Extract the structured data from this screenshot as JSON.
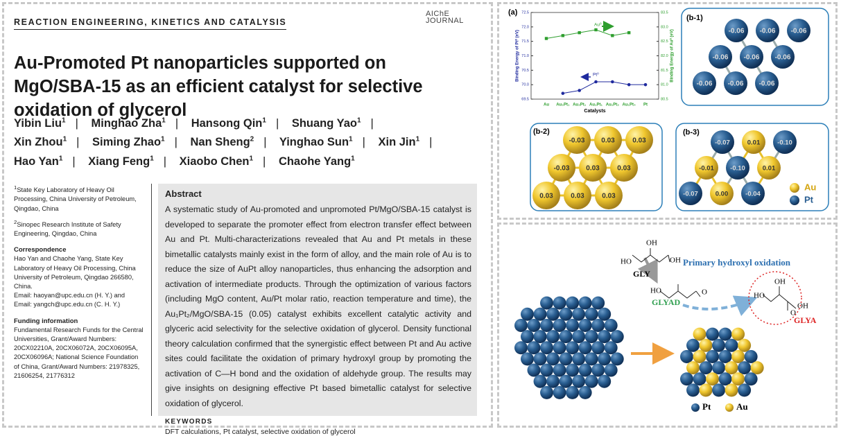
{
  "header": {
    "section": "REACTION ENGINEERING, KINETICS AND CATALYSIS",
    "logo_top": "AIChE",
    "logo_bottom": "JOURNAL"
  },
  "title": "Au-Promoted Pt nanoparticles supported on MgO/SBA-15 as an efficient catalyst for selective oxidation of glycerol",
  "authors": [
    {
      "name": "Yibin Liu",
      "aff": "1"
    },
    {
      "name": "Minghao Zha",
      "aff": "1"
    },
    {
      "name": "Hansong Qin",
      "aff": "1"
    },
    {
      "name": "Shuang Yao",
      "aff": "1"
    },
    {
      "name": "Xin Zhou",
      "aff": "1"
    },
    {
      "name": "Siming Zhao",
      "aff": "1"
    },
    {
      "name": "Nan Sheng",
      "aff": "2"
    },
    {
      "name": "Yinghao Sun",
      "aff": "1"
    },
    {
      "name": "Xin Jin",
      "aff": "1"
    },
    {
      "name": "Hao Yan",
      "aff": "1"
    },
    {
      "name": "Xiang Feng",
      "aff": "1"
    },
    {
      "name": "Xiaobo Chen",
      "aff": "1"
    },
    {
      "name": "Chaohe Yang",
      "aff": "1"
    }
  ],
  "affiliations": [
    {
      "mark": "1",
      "text": "State Key Laboratory of Heavy Oil Processing, China University of Petroleum, Qingdao, China"
    },
    {
      "mark": "2",
      "text": "Sinopec Research Institute of Safety Engineering, Qingdao, China"
    }
  ],
  "correspondence": {
    "heading": "Correspondence",
    "text": "Hao Yan and Chaohe Yang, State Key Laboratory of Heavy Oil Processing, China University of Petroleum, Qingdao 266580, China.",
    "email1": "Email: haoyan@upc.edu.cn (H. Y.) and",
    "email2": "Email: yangch@upc.edu.cn (C. H. Y.)"
  },
  "funding": {
    "heading": "Funding information",
    "text": "Fundamental Research Funds for the Central Universities, Grant/Award Numbers: 20CX02210A, 20CX06072A, 20CX06095A, 20CX06096A; National Science Foundation of China, Grant/Award Numbers: 21978325, 21606254, 21776312"
  },
  "abstract": {
    "heading": "Abstract",
    "text": "A systematic study of Au-promoted and unpromoted Pt/MgO/SBA-15 catalyst is developed to separate the promoter effect from electron transfer effect between Au and Pt. Multi-characterizations revealed that Au and Pt metals in these bimetallic catalysts mainly exist in the form of alloy, and the main role of Au is to reduce the size of AuPt alloy nanoparticles, thus enhancing the adsorption and activation of intermediate products. Through the optimization of various factors (including MgO content, Au/Pt molar ratio, reaction temperature and time), the Au₁Pt₂/MgO/SBA-15 (0.05) catalyst exhibits excellent catalytic activity and glyceric acid selectivity for the selective oxidation of glycerol. Density functional theory calculation confirmed that the synergistic effect between Pt and Au active sites could facilitate the oxidation of primary hydroxyl group by promoting the activation of C—H bond and the oxidation of aldehyde group. The results may give insights on designing effective Pt based bimetallic catalyst for selective oxidation of glycerol."
  },
  "keywords": {
    "heading": "KEYWORDS",
    "text": "DFT calculations, Pt catalyst, selective oxidation of glycerol"
  },
  "panel_a": {
    "label": "(a)",
    "type": "line",
    "categories": [
      "Au",
      "Au₃Pt₁",
      "Au₂Pt₁",
      "Au₁Pt₁",
      "Au₁Pt₂",
      "Au₁Pt₄",
      "Pt"
    ],
    "series": [
      {
        "name": "Au⁰",
        "color": "#2e9e2e",
        "axis": "y2",
        "values": [
          82.6,
          82.7,
          82.8,
          82.9,
          82.7,
          82.8,
          null
        ]
      },
      {
        "name": "Pt⁰",
        "color": "#1f2a9e",
        "values": [
          null,
          69.7,
          69.8,
          70.1,
          70.1,
          70.0,
          70.0
        ]
      }
    ],
    "xlabel": "Catalysts",
    "ylabel": "Binding Energy of Pt⁰ (eV)",
    "y2label": "Binding Energy of Au⁰ (eV)",
    "ylim": [
      69.5,
      72.5
    ],
    "yticks": [
      69.5,
      {
        "value": 70,
        "label": "70.0"
      },
      70.5,
      {
        "value": 71,
        "label": "71.0"
      },
      71.5,
      {
        "value": 72,
        "label": "72.0"
      },
      72.5
    ],
    "y2lim": [
      80.5,
      83.5
    ],
    "y2ticks": [
      80.5,
      {
        "value": 81,
        "label": "81.0"
      },
      81.5,
      {
        "value": 82,
        "label": "82.0"
      },
      82.5,
      {
        "value": 83,
        "label": "83.0"
      },
      83.5
    ]
  },
  "panel_b1": {
    "label": "(b-1)",
    "charges": [
      "-0.06",
      "-0.06",
      "-0.06",
      "-0.06",
      "-0.06",
      "-0.06",
      "-0.06",
      "-0.06",
      "-0.06"
    ]
  },
  "panel_b2": {
    "label": "(b-2)",
    "charges": [
      "-0.03",
      "0.03",
      "0.03",
      "-0.03",
      "0.03",
      "0.03",
      "0.03",
      "0.03",
      "0.03"
    ]
  },
  "panel_b3": {
    "label": "(b-3)",
    "charges": [
      "-0.07",
      "0.01",
      "-0.10",
      "-0.01",
      "-0.10",
      "0.01",
      "-0.07",
      "0.00",
      "-0.04"
    ],
    "legend": [
      "Au",
      "Pt"
    ]
  },
  "scheme": {
    "gly": "GLY",
    "glyad": "GLYAD",
    "glya": "GLYA",
    "arrow_label": "Primary hydroxyl oxidation",
    "groups": [
      "OH",
      "OH",
      "HO",
      "HO",
      "O",
      "HO",
      "OH",
      "O",
      "OH"
    ],
    "legend": [
      "Pt",
      "Au"
    ]
  }
}
